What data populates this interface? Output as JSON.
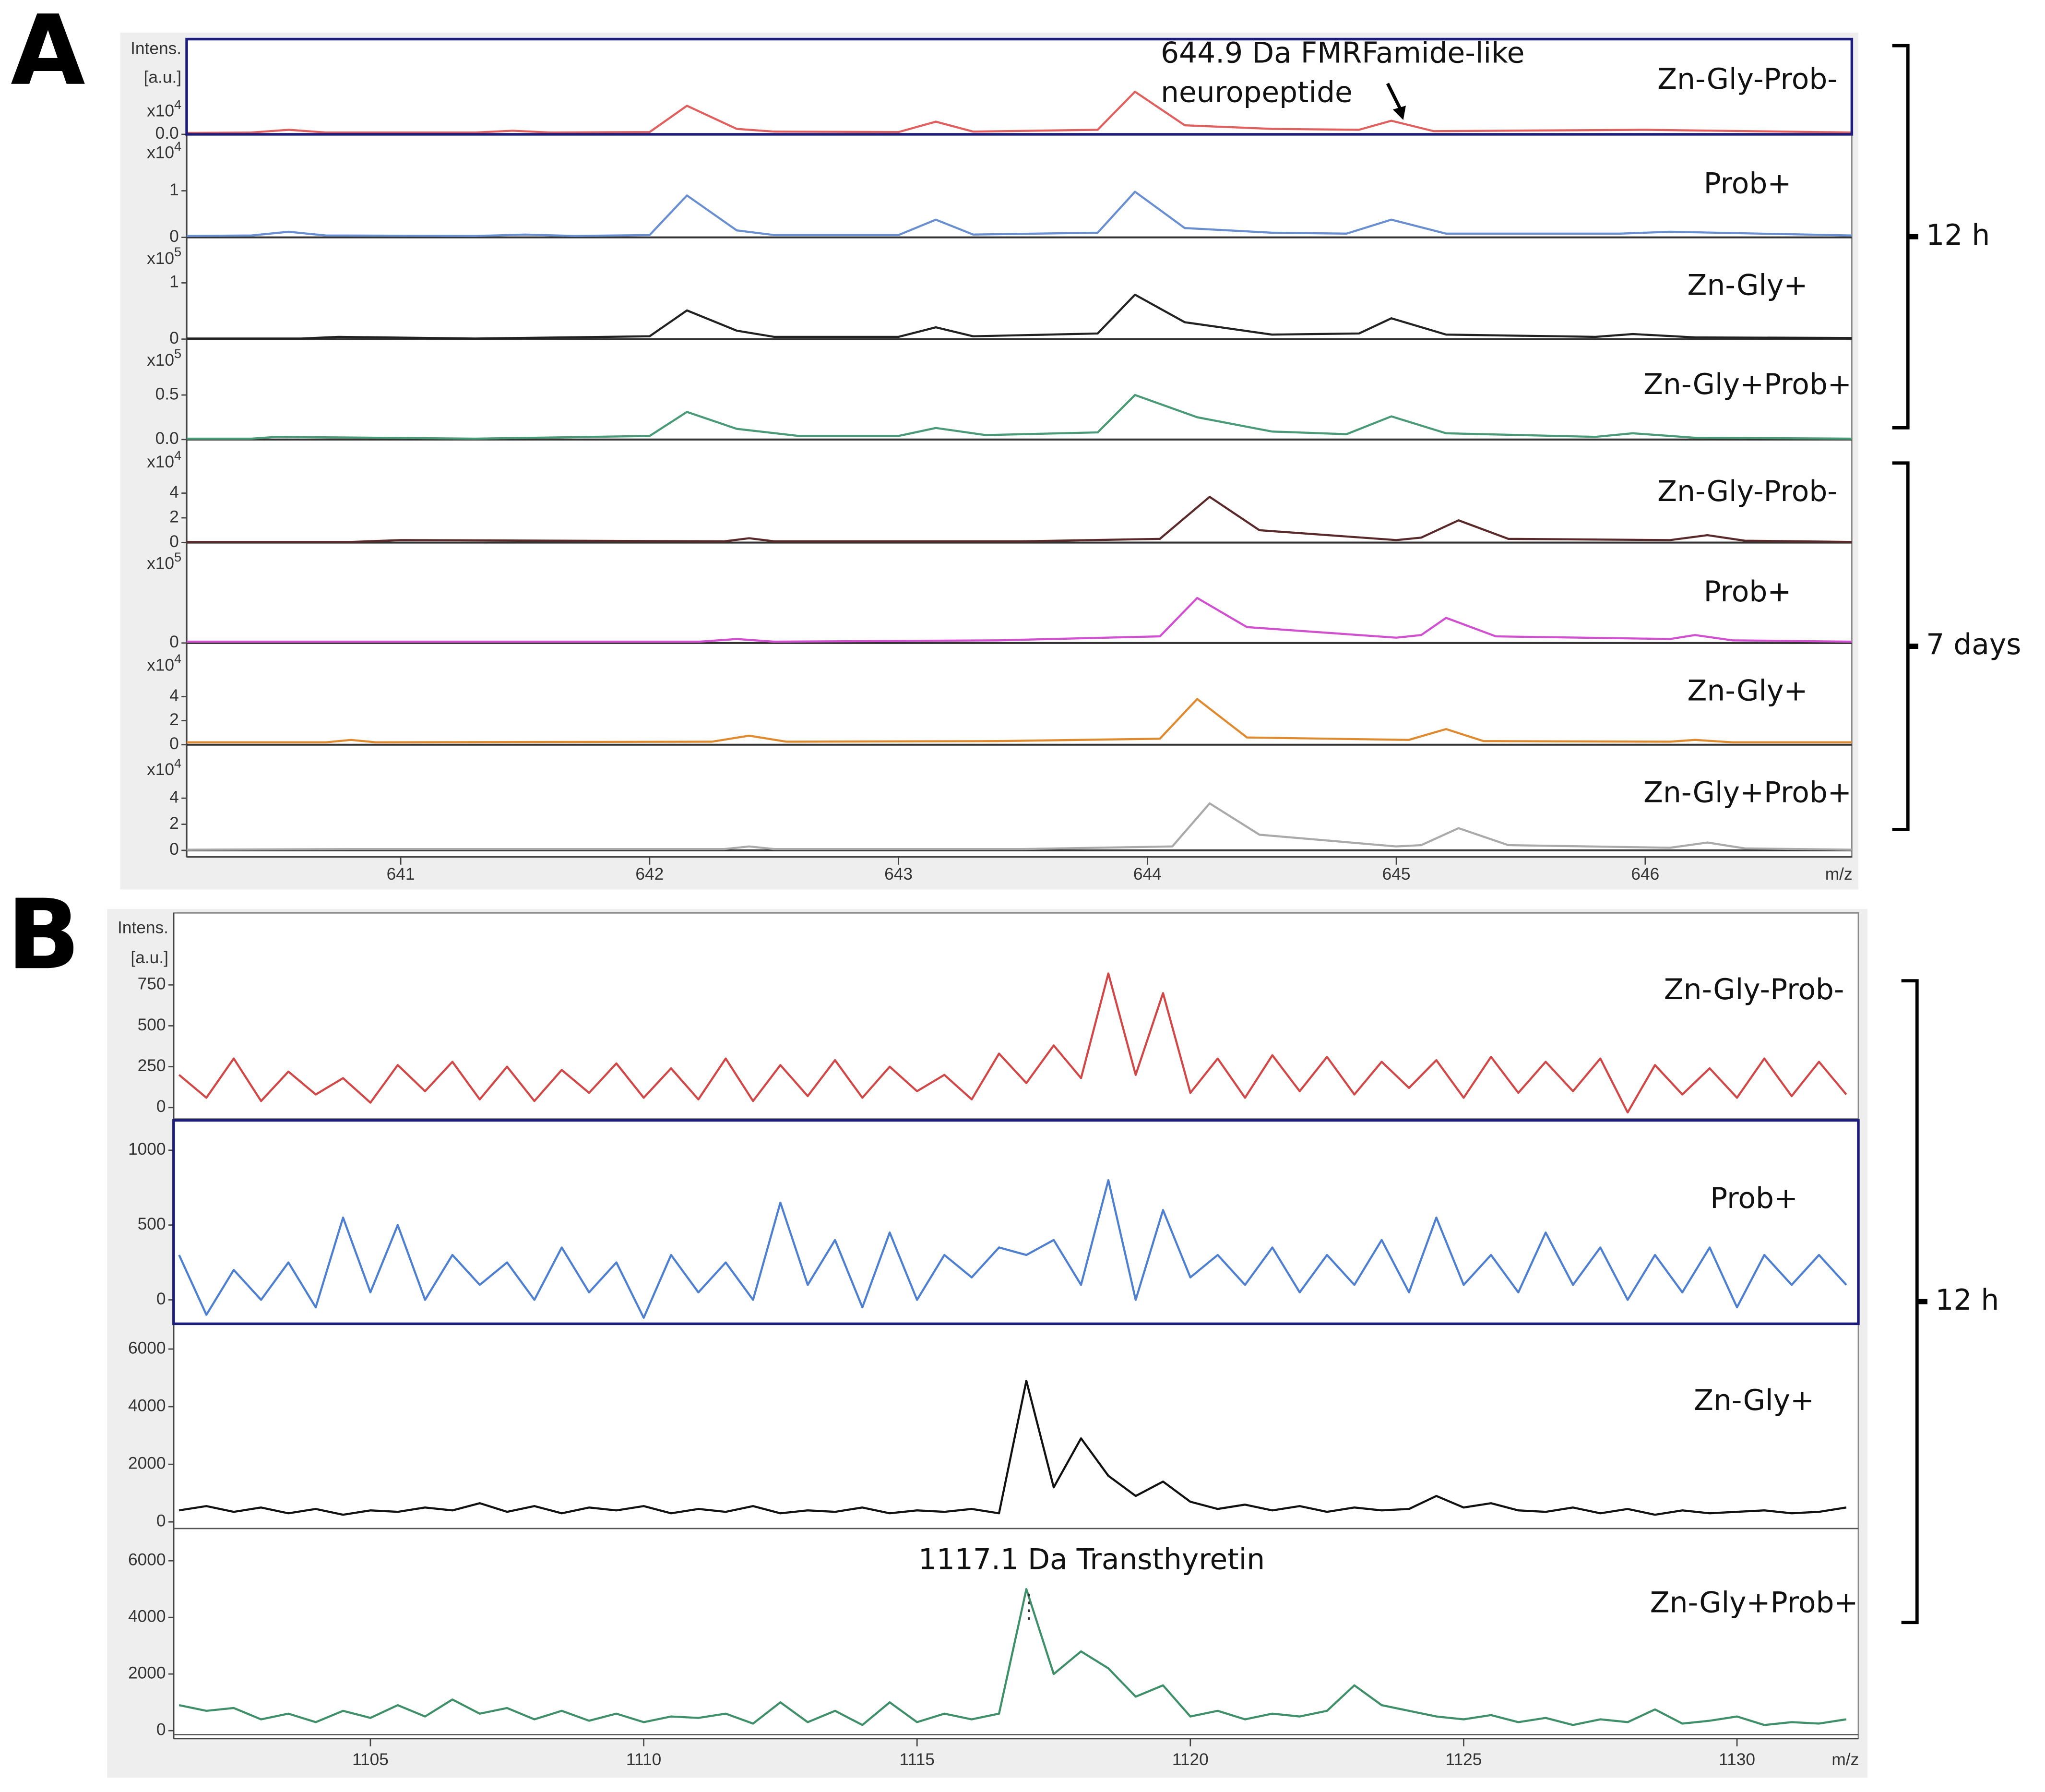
{
  "chart_data": [
    {
      "type": "line",
      "panel": "A",
      "ylabel": [
        "Intens.",
        "[a.u.]"
      ],
      "xlabel": "m/z",
      "xlim": [
        640.14,
        646.83
      ],
      "xticks": [
        641,
        642,
        643,
        644,
        645,
        646
      ],
      "annotation": {
        "text": [
          "644.9 Da FMRFamide-like",
          "neuropeptide"
        ]
      },
      "groups": [
        {
          "label": "12 h",
          "traces": [
            {
              "name": "Zn-Gly-Prob-",
              "color": "#e06060",
              "selected": true,
              "scale": "x10",
              "exponent": "4",
              "ylim": [
                0,
                2.1
              ],
              "yticks": [
                {
                  "value": 0,
                  "label": "0.0"
                }
              ],
              "x": [
                640.14,
                640.4,
                640.55,
                640.7,
                641.3,
                641.45,
                641.6,
                642.0,
                642.15,
                642.35,
                642.5,
                643.0,
                643.15,
                643.3,
                643.8,
                643.95,
                644.15,
                644.5,
                644.85,
                644.98,
                645.15,
                646.0,
                646.83
              ],
              "values": [
                0.03,
                0.04,
                0.1,
                0.04,
                0.04,
                0.08,
                0.04,
                0.05,
                0.63,
                0.12,
                0.06,
                0.05,
                0.28,
                0.06,
                0.1,
                0.94,
                0.2,
                0.12,
                0.1,
                0.3,
                0.07,
                0.1,
                0.04
              ]
            },
            {
              "name": "Prob+",
              "color": "#6a8fd0",
              "scale": "x10",
              "exponent": "4",
              "ylim": [
                0,
                2.1
              ],
              "yticks": [
                0,
                1
              ],
              "x": [
                640.14,
                640.4,
                640.55,
                640.7,
                641.3,
                641.5,
                641.7,
                642.0,
                642.15,
                642.35,
                642.5,
                643.0,
                643.15,
                643.3,
                643.8,
                643.95,
                644.15,
                644.5,
                644.8,
                644.98,
                645.2,
                645.9,
                646.1,
                646.83
              ],
              "values": [
                0.03,
                0.04,
                0.12,
                0.04,
                0.03,
                0.06,
                0.03,
                0.05,
                0.9,
                0.15,
                0.05,
                0.05,
                0.38,
                0.06,
                0.1,
                0.98,
                0.2,
                0.1,
                0.08,
                0.38,
                0.08,
                0.08,
                0.12,
                0.04
              ]
            },
            {
              "name": "Zn-Gly+",
              "color": "#222222",
              "scale": "x10",
              "exponent": "5",
              "ylim": [
                0,
                1.67
              ],
              "yticks": [
                0,
                1
              ],
              "x": [
                640.14,
                640.6,
                640.75,
                641.3,
                642.0,
                642.15,
                642.35,
                642.5,
                643.0,
                643.15,
                643.3,
                643.8,
                643.95,
                644.15,
                644.5,
                644.85,
                644.98,
                645.2,
                645.8,
                645.95,
                646.2,
                646.83
              ],
              "values": [
                0.01,
                0.01,
                0.04,
                0.01,
                0.05,
                0.51,
                0.15,
                0.04,
                0.04,
                0.21,
                0.05,
                0.1,
                0.79,
                0.3,
                0.08,
                0.1,
                0.37,
                0.08,
                0.04,
                0.09,
                0.03,
                0.02
              ]
            },
            {
              "name": "Zn-Gly+Prob+",
              "color": "#4a9a78",
              "scale": "x10",
              "exponent": "5",
              "ylim": [
                0,
                1.04
              ],
              "yticks": [
                {
                  "value": 0,
                  "label": "0.0"
                },
                0.5
              ],
              "x": [
                640.14,
                640.4,
                640.5,
                641.3,
                642.0,
                642.15,
                642.35,
                642.6,
                643.0,
                643.15,
                643.35,
                643.8,
                643.95,
                644.2,
                644.5,
                644.8,
                644.98,
                645.2,
                645.8,
                645.95,
                646.2,
                646.83
              ],
              "values": [
                0.01,
                0.01,
                0.03,
                0.01,
                0.04,
                0.31,
                0.12,
                0.04,
                0.04,
                0.13,
                0.05,
                0.08,
                0.5,
                0.25,
                0.09,
                0.06,
                0.26,
                0.07,
                0.03,
                0.07,
                0.02,
                0.01
              ]
            }
          ]
        },
        {
          "label": "7 days",
          "traces": [
            {
              "name": "Zn-Gly-Prob-",
              "color": "#5a2a2a",
              "scale": "x10",
              "exponent": "4",
              "ylim": [
                0,
                7.6
              ],
              "yticks": [
                0,
                2,
                4
              ],
              "x": [
                640.14,
                640.8,
                641.0,
                642.3,
                642.4,
                642.5,
                643.5,
                644.05,
                644.25,
                644.45,
                645.0,
                645.1,
                645.25,
                645.45,
                646.1,
                646.25,
                646.4,
                646.83
              ],
              "values": [
                0.05,
                0.05,
                0.2,
                0.1,
                0.35,
                0.1,
                0.1,
                0.3,
                3.7,
                1.0,
                0.2,
                0.4,
                1.8,
                0.3,
                0.2,
                0.6,
                0.15,
                0.05
              ]
            },
            {
              "name": "Prob+",
              "color": "#d050d0",
              "scale": "x10",
              "exponent": "5",
              "ylim": [
                0,
                0.7
              ],
              "yticks": [
                0
              ],
              "x": [
                640.14,
                640.8,
                642.2,
                642.35,
                642.5,
                643.4,
                644.05,
                644.2,
                644.4,
                645.0,
                645.1,
                645.2,
                645.4,
                646.1,
                646.2,
                646.35,
                646.83
              ],
              "values": [
                0.01,
                0.01,
                0.01,
                0.03,
                0.01,
                0.02,
                0.05,
                0.34,
                0.12,
                0.04,
                0.06,
                0.19,
                0.05,
                0.03,
                0.06,
                0.02,
                0.01
              ]
            },
            {
              "name": "Zn-Gly+",
              "color": "#e08a30",
              "scale": "x10",
              "exponent": "4",
              "ylim": [
                0,
                7.7
              ],
              "yticks": [
                0,
                2,
                4
              ],
              "x": [
                640.14,
                640.7,
                640.8,
                640.9,
                642.25,
                642.4,
                642.55,
                643.4,
                644.05,
                644.2,
                644.4,
                645.05,
                645.2,
                645.35,
                646.1,
                646.2,
                646.35,
                646.83
              ],
              "values": [
                0.2,
                0.2,
                0.4,
                0.2,
                0.25,
                0.75,
                0.25,
                0.3,
                0.5,
                3.8,
                0.6,
                0.4,
                1.3,
                0.3,
                0.25,
                0.4,
                0.2,
                0.2
              ]
            },
            {
              "name": "Zn-Gly+Prob+",
              "color": "#aaaaaa",
              "scale": "x10",
              "exponent": "4",
              "ylim": [
                0,
                7.2
              ],
              "yticks": [
                0,
                2,
                4
              ],
              "x": [
                640.14,
                640.8,
                642.3,
                642.4,
                642.5,
                643.5,
                644.1,
                644.25,
                644.45,
                645.0,
                645.1,
                645.25,
                645.45,
                646.1,
                646.25,
                646.4,
                646.83
              ],
              "values": [
                0.05,
                0.1,
                0.1,
                0.3,
                0.1,
                0.1,
                0.3,
                3.6,
                1.2,
                0.3,
                0.4,
                1.7,
                0.4,
                0.2,
                0.6,
                0.15,
                0.05
              ]
            }
          ]
        }
      ]
    },
    {
      "type": "line",
      "panel": "B",
      "ylabel": [
        "Intens.",
        "[a.u.]"
      ],
      "xlabel": "m/z",
      "xlim": [
        1101.4,
        1132.22
      ],
      "xticks": [
        1105,
        1110,
        1115,
        1120,
        1125,
        1130
      ],
      "annotation": {
        "text": [
          "1117.1 Da Transthyretin"
        ]
      },
      "x": [
        1101.5,
        1102,
        1102.5,
        1103,
        1103.5,
        1104,
        1104.5,
        1105,
        1105.5,
        1106,
        1106.5,
        1107,
        1107.5,
        1108,
        1108.5,
        1109,
        1109.5,
        1110,
        1110.5,
        1111,
        1111.5,
        1112,
        1112.5,
        1113,
        1113.5,
        1114,
        1114.5,
        1115,
        1115.5,
        1116,
        1116.5,
        1117,
        1117.5,
        1118,
        1118.5,
        1119,
        1119.5,
        1120,
        1120.5,
        1121,
        1121.5,
        1122,
        1122.5,
        1123,
        1123.5,
        1124,
        1124.5,
        1125,
        1125.5,
        1126,
        1126.5,
        1127,
        1127.5,
        1128,
        1128.5,
        1129,
        1129.5,
        1130,
        1130.5,
        1131,
        1131.5,
        1132
      ],
      "groups": [
        {
          "label": "12 h",
          "traces": [
            {
              "name": "Zn-Gly-Prob-",
              "color": "#d04848",
              "ylim": [
                -70,
                1190
              ],
              "yticks": [
                0,
                250,
                500,
                750
              ],
              "values": [
                200,
                60,
                300,
                40,
                220,
                80,
                180,
                30,
                260,
                100,
                280,
                50,
                250,
                40,
                230,
                90,
                270,
                60,
                240,
                50,
                300,
                40,
                260,
                70,
                290,
                60,
                250,
                100,
                200,
                50,
                330,
                150,
                380,
                180,
                820,
                200,
                700,
                90,
                300,
                60,
                320,
                100,
                310,
                80,
                280,
                120,
                290,
                60,
                310,
                90,
                280,
                100,
                300,
                -30,
                260,
                80,
                240,
                60,
                300,
                70,
                280,
                80
              ]
            },
            {
              "name": "Prob+",
              "color": "#4f7fcf",
              "selected": true,
              "ylim": [
                -160,
                1200
              ],
              "yticks": [
                0,
                500,
                1000
              ],
              "values": [
                300,
                -100,
                200,
                0,
                250,
                -50,
                550,
                50,
                500,
                0,
                300,
                100,
                250,
                0,
                350,
                50,
                250,
                -120,
                300,
                50,
                250,
                0,
                650,
                100,
                400,
                -50,
                450,
                0,
                300,
                150,
                350,
                300,
                400,
                100,
                800,
                0,
                600,
                150,
                300,
                100,
                350,
                50,
                300,
                100,
                400,
                50,
                550,
                100,
                300,
                50,
                450,
                100,
                350,
                0,
                300,
                50,
                350,
                -50,
                300,
                100,
                300,
                100
              ]
            },
            {
              "name": "Zn-Gly+",
              "color": "#111111",
              "ylim": [
                -230,
                6650
              ],
              "yticks": [
                0,
                2000,
                4000,
                6000
              ],
              "values": [
                400,
                550,
                350,
                500,
                300,
                450,
                250,
                400,
                350,
                500,
                400,
                650,
                350,
                550,
                300,
                500,
                400,
                550,
                300,
                450,
                350,
                550,
                300,
                400,
                350,
                500,
                300,
                400,
                350,
                450,
                300,
                4900,
                1200,
                2900,
                1600,
                900,
                1400,
                700,
                450,
                600,
                400,
                550,
                350,
                500,
                400,
                450,
                900,
                500,
                650,
                400,
                350,
                500,
                300,
                450,
                250,
                400,
                300,
                350,
                400,
                300,
                350,
                500
              ]
            },
            {
              "name": "Zn-Gly+Prob+",
              "color": "#3f8f6a",
              "ylim": [
                -140,
                7000
              ],
              "yticks": [
                0,
                2000,
                4000,
                6000
              ],
              "values": [
                900,
                700,
                800,
                400,
                600,
                300,
                700,
                450,
                900,
                500,
                1100,
                600,
                800,
                400,
                700,
                350,
                600,
                300,
                500,
                450,
                600,
                250,
                1000,
                300,
                700,
                200,
                1000,
                300,
                600,
                400,
                600,
                5000,
                2000,
                2800,
                2200,
                1200,
                1600,
                500,
                700,
                400,
                600,
                500,
                700,
                1600,
                900,
                700,
                500,
                400,
                550,
                300,
                450,
                200,
                400,
                300,
                750,
                250,
                350,
                500,
                200,
                300,
                250,
                400
              ]
            }
          ]
        }
      ]
    }
  ]
}
